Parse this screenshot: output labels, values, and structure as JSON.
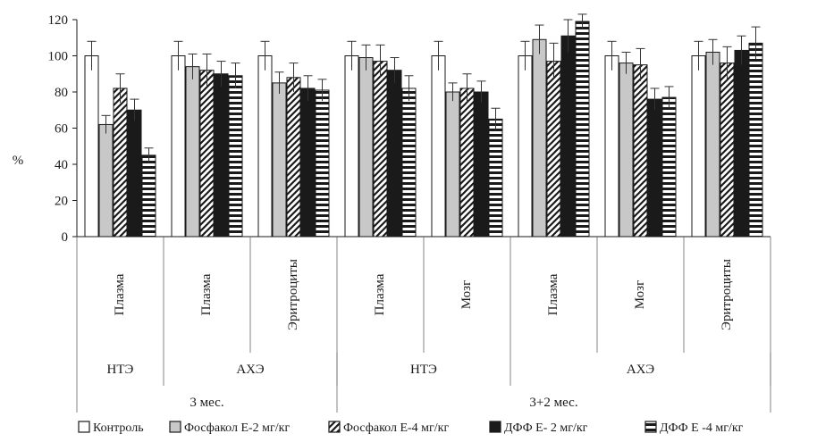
{
  "chart_data": {
    "type": "bar",
    "ylabel": "%",
    "ylim": [
      0,
      120
    ],
    "yticks": [
      "0",
      "20",
      "40",
      "60",
      "80",
      "100",
      "120"
    ],
    "grid": false,
    "legend_position": "bottom",
    "categories": [
      "Плазма",
      "Плазма",
      "Эритроциты",
      "Плазма",
      "Мозг",
      "Плазма",
      "Мозг",
      "Эритроциты"
    ],
    "enzyme_groups": [
      {
        "label": "НТЭ",
        "span": 1
      },
      {
        "label": "АХЭ",
        "span": 2
      },
      {
        "label": "НТЭ",
        "span": 2
      },
      {
        "label": "АХЭ",
        "span": 3
      }
    ],
    "period_groups": [
      {
        "label": "3 мес.",
        "span": 3
      },
      {
        "label": "3+2 мес.",
        "span": 5
      }
    ],
    "series": [
      {
        "name": "Контроль",
        "pattern": "white",
        "values": [
          100,
          100,
          100,
          100,
          100,
          100,
          100,
          100
        ],
        "errors": [
          8,
          8,
          8,
          8,
          8,
          8,
          8,
          8
        ]
      },
      {
        "name": "Фосфакол Е-2 мг/кг",
        "pattern": "gray",
        "values": [
          62,
          94,
          85,
          99,
          80,
          109,
          96,
          102
        ],
        "errors": [
          5,
          7,
          6,
          7,
          5,
          8,
          6,
          7
        ]
      },
      {
        "name": "Фосфакол Е-4 мг/кг",
        "pattern": "diagonal",
        "values": [
          82,
          92,
          88,
          97,
          82,
          97,
          95,
          96
        ],
        "errors": [
          8,
          9,
          8,
          9,
          8,
          10,
          9,
          9
        ]
      },
      {
        "name": "ДФФ Е- 2 мг/кг",
        "pattern": "black",
        "values": [
          70,
          90,
          82,
          92,
          80,
          111,
          76,
          103
        ],
        "errors": [
          6,
          7,
          7,
          7,
          6,
          9,
          6,
          8
        ]
      },
      {
        "name": "ДФФ Е -4 мг/кг",
        "pattern": "hstripe",
        "values": [
          45,
          89,
          81,
          82,
          65,
          119,
          77,
          107
        ],
        "errors": [
          4,
          7,
          6,
          7,
          6,
          4,
          6,
          9
        ]
      }
    ],
    "colors": {
      "bar_edge": "#1a1a1a",
      "gray_fill": "#c8c8c8",
      "black_fill": "#1a1a1a",
      "axis": "#1a1a1a"
    }
  }
}
